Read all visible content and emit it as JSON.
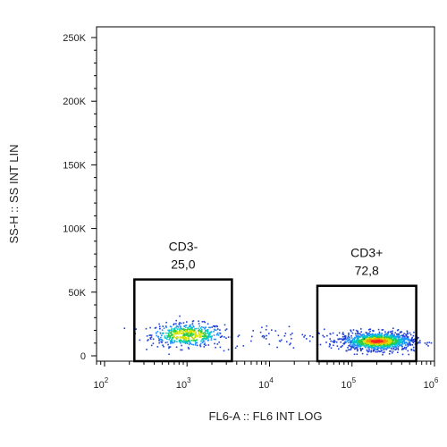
{
  "chart_data": {
    "type": "scatter",
    "title": "",
    "xlabel": "FL6-A :: FL6 INT LOG",
    "ylabel": "SS-H :: SS INT LIN",
    "x_scale": "log",
    "y_scale": "linear",
    "xlim": [
      80,
      1000000
    ],
    "ylim": [
      0,
      262144
    ],
    "x_ticks": [
      {
        "value": 100,
        "base": "10",
        "exp": "2"
      },
      {
        "value": 1000,
        "base": "10",
        "exp": "3"
      },
      {
        "value": 10000,
        "base": "10",
        "exp": "4"
      },
      {
        "value": 100000,
        "base": "10",
        "exp": "5"
      },
      {
        "value": 1000000,
        "base": "10",
        "exp": "6"
      }
    ],
    "y_ticks": [
      {
        "value": 0,
        "label": "0"
      },
      {
        "value": 50000,
        "label": "50K"
      },
      {
        "value": 100000,
        "label": "100K"
      },
      {
        "value": 150000,
        "label": "150K"
      },
      {
        "value": 200000,
        "label": "200K"
      },
      {
        "value": 250000,
        "label": "250K"
      }
    ],
    "grid": false,
    "legend": "none",
    "populations": [
      {
        "gate": "CD3-",
        "center_x": 1000,
        "center_y": 17000,
        "spread_log_x": 0.22,
        "spread_y": 4500,
        "count": 520
      },
      {
        "gate": "CD3+",
        "center_x": 200000,
        "center_y": 12000,
        "spread_log_x": 0.22,
        "spread_y": 3500,
        "count": 1250
      },
      {
        "gate": "between",
        "center_x": 15000,
        "center_y": 15000,
        "spread_log_x": 0.45,
        "spread_y": 5000,
        "count": 60
      }
    ],
    "gates": [
      {
        "name": "CD3-",
        "percent": "25,0",
        "x_range": [
          230,
          3500
        ],
        "y_range": [
          0,
          60000
        ]
      },
      {
        "name": "CD3+",
        "percent": "72,8",
        "x_range": [
          38000,
          600000
        ],
        "y_range": [
          0,
          55000
        ]
      }
    ],
    "density_colors": [
      "#1f3fd6",
      "#1e90ff",
      "#00c8c8",
      "#2ecc40",
      "#d6e000",
      "#ff8c00",
      "#ff2020"
    ]
  }
}
